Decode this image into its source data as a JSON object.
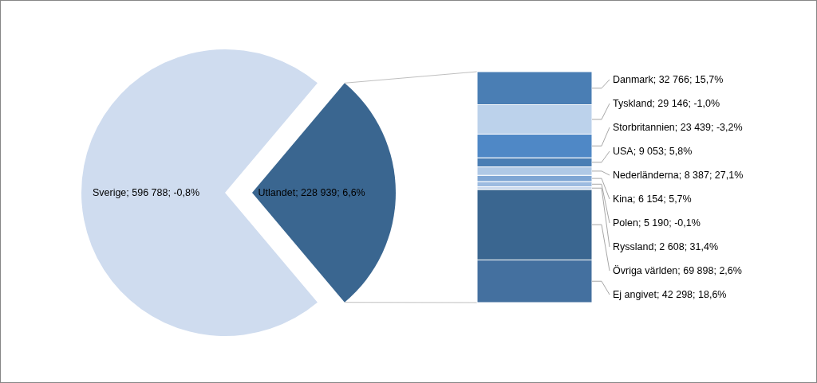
{
  "chart_data": [
    {
      "type": "pie",
      "categories": [
        "Sverige",
        "Utlandet"
      ],
      "values": [
        596788,
        228939
      ],
      "colors": [
        "#cfdcef",
        "#3a6690"
      ],
      "value_labels": [
        "596 788; -0,8%",
        "228 939; 6,6%"
      ]
    },
    {
      "type": "bar",
      "stacked": true,
      "categories": [
        null
      ],
      "series": [
        {
          "color": "#44709f",
          "values": [
            42298
          ],
          "value_labels": [
            "Ej angivet; 42 298; 18,6%"
          ]
        },
        {
          "color": "#3a6690",
          "values": [
            69898
          ],
          "value_labels": [
            "Övriga världen; 69 898; 2,6%"
          ]
        },
        {
          "color": "#c5d6ec",
          "values": [
            2608
          ],
          "value_labels": [
            "Ryssland; 2 608; 31,4%"
          ]
        },
        {
          "color": "#9cbbe0",
          "values": [
            5190
          ],
          "value_labels": [
            "Polen; 5 190; -0,1%"
          ]
        },
        {
          "color": "#7fa6d4",
          "values": [
            6154
          ],
          "value_labels": [
            "Kina; 6 154; 5,7%"
          ]
        },
        {
          "color": "#b0c9e6",
          "values": [
            8387
          ],
          "value_labels": [
            "Nederländerna; 8 387; 27,1%"
          ]
        },
        {
          "color": "#4a7eb4",
          "values": [
            9053
          ],
          "value_labels": [
            "USA; 9 053; 5,8%"
          ]
        },
        {
          "color": "#4f88c6",
          "values": [
            23439
          ],
          "value_labels": [
            "Storbritannien; 23 439; -3,2%"
          ]
        },
        {
          "color": "#bcd2eb",
          "values": [
            29146
          ],
          "value_labels": [
            "Tyskland; 29 146; -1,0%"
          ]
        },
        {
          "color": "#4a7eb4",
          "values": [
            32766
          ],
          "value_labels": [
            "Danmark; 32 766; 15,7%"
          ]
        }
      ]
    }
  ]
}
